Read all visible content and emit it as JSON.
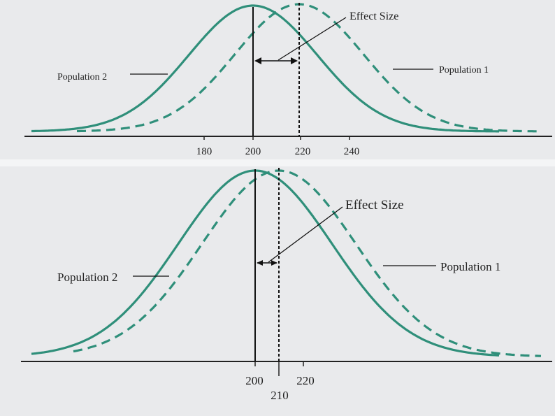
{
  "figures": [
    {
      "id": "top",
      "effect_size_label": "Effect Size",
      "population1_label": "Population 1",
      "population2_label": "Population 2",
      "tick_labels": [
        "180",
        "200",
        "220",
        "240"
      ]
    },
    {
      "id": "bottom",
      "effect_size_label": "Effect Size",
      "population1_label": "Population 1",
      "population2_label": "Population 2",
      "tick_labels": [
        "200",
        "210",
        "220"
      ]
    }
  ],
  "curve_color": "#2f8f7a",
  "means": {
    "population2": 200,
    "population1_top": 220,
    "population1_bottom": 210
  }
}
